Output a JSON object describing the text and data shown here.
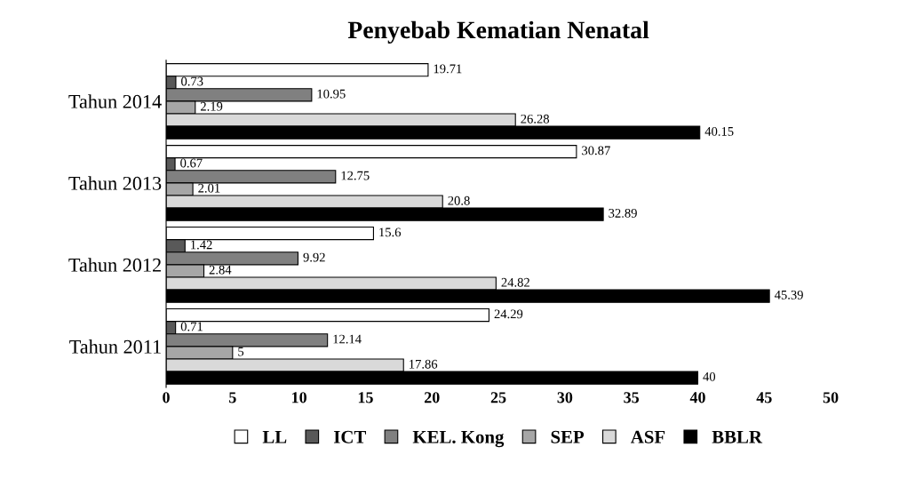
{
  "chart_data": {
    "type": "bar",
    "orientation": "horizontal",
    "title": "Penyebab Kematian Nenatal",
    "categories": [
      "Tahun 2014",
      "Tahun 2013",
      "Tahun 2012",
      "Tahun 2011"
    ],
    "series": [
      {
        "name": "LL",
        "color": "#ffffff",
        "values": [
          19.71,
          30.87,
          15.6,
          24.29
        ]
      },
      {
        "name": "ICT",
        "color": "#595959",
        "values": [
          0.73,
          0.67,
          1.42,
          0.71
        ]
      },
      {
        "name": "KEL. Kong",
        "color": "#808080",
        "values": [
          10.95,
          12.75,
          9.92,
          12.14
        ]
      },
      {
        "name": "SEP",
        "color": "#a6a6a6",
        "values": [
          2.19,
          2.01,
          2.84,
          5
        ]
      },
      {
        "name": "ASF",
        "color": "#d9d9d9",
        "values": [
          26.28,
          20.8,
          24.82,
          17.86
        ]
      },
      {
        "name": "BBLR",
        "color": "#000000",
        "values": [
          40.15,
          32.89,
          45.39,
          40
        ]
      }
    ],
    "xlim": [
      0,
      50
    ],
    "xticks": [
      0,
      5,
      10,
      15,
      20,
      25,
      30,
      35,
      40,
      45,
      50
    ],
    "data_labels": true,
    "grid": false,
    "legend": "bottom"
  }
}
